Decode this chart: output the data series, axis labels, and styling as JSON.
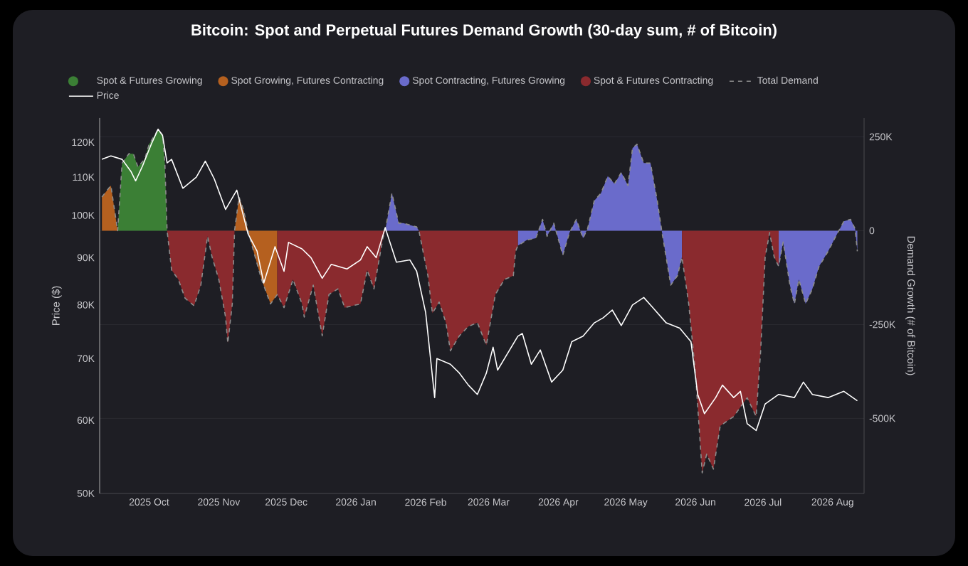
{
  "chart_data": {
    "type": "area",
    "title": "Bitcoin: Spot and Perpetual Futures Demand Growth (30-day sum, # of Bitcoin)",
    "ylabel": "Price ($)",
    "y2label": "Demand Growth (# of Bitcoin)",
    "xlim": [
      "2025-09-09",
      "2026-08-15"
    ],
    "xticks": [
      {
        "value": "2025-10-01",
        "label": "2025 Oct"
      },
      {
        "value": "2025-11-01",
        "label": "2025 Nov"
      },
      {
        "value": "2025-12-01",
        "label": "2025 Dec"
      },
      {
        "value": "2026-01-01",
        "label": "2026 Jan"
      },
      {
        "value": "2026-02-01",
        "label": "2026 Feb"
      },
      {
        "value": "2026-03-01",
        "label": "2026 Mar"
      },
      {
        "value": "2026-04-01",
        "label": "2026 Apr"
      },
      {
        "value": "2026-05-01",
        "label": "2026 May"
      },
      {
        "value": "2026-06-01",
        "label": "2026 Jun"
      },
      {
        "value": "2026-07-01",
        "label": "2026 Jul"
      },
      {
        "value": "2026-08-01",
        "label": "2026 Aug"
      }
    ],
    "ylim": [
      50000,
      127500
    ],
    "log": "y",
    "yticks": [
      {
        "value": 50000,
        "label": "50K"
      },
      {
        "value": 60000,
        "label": "60K"
      },
      {
        "value": 70000,
        "label": "70K"
      },
      {
        "value": 80000,
        "label": "80K"
      },
      {
        "value": 90000,
        "label": "90K"
      },
      {
        "value": 100000,
        "label": "100K"
      },
      {
        "value": 110000,
        "label": "110K"
      },
      {
        "value": 120000,
        "label": "120K"
      }
    ],
    "y2lim": [
      -700000,
      300000
    ],
    "y2ticks": [
      {
        "value": -500000,
        "label": "-500K"
      },
      {
        "value": -250000,
        "label": "-250K"
      },
      0,
      {
        "value": 250000,
        "label": "250K"
      }
    ],
    "grid": "y2",
    "legend": "top",
    "series": [
      {
        "name": "Spot & Futures Growing",
        "axis": "y2",
        "color": "#3b7f35",
        "x": [
          "2025-09-17",
          "2025-09-19",
          "2025-09-22",
          "2025-09-24",
          "2025-09-26",
          "2025-09-29",
          "2025-10-01",
          "2025-10-05",
          "2025-10-07",
          "2025-10-08",
          "2025-10-09"
        ],
        "values": [
          0,
          180000,
          205000,
          205000,
          170000,
          190000,
          230000,
          270000,
          255000,
          180000,
          0
        ]
      },
      {
        "name": "Spot Growing, Futures Contracting",
        "axis": "y2",
        "color": "#b5601f",
        "x": [
          "2025-09-10",
          "2025-09-14",
          "2025-09-17",
          "2025-10-15",
          "2025-11-08",
          "2025-11-10",
          "2025-11-12",
          "2025-11-14",
          "2025-11-16",
          "2025-11-20",
          "2025-11-24",
          "2025-11-27"
        ],
        "values": [
          90000,
          120000,
          0,
          null,
          0,
          90000,
          55000,
          0,
          -45000,
          -130000,
          -195000,
          -170000
        ]
      },
      {
        "name": "Spot Contracting, Futures Growing",
        "axis": "y2",
        "color": "#6a6bcb",
        "x": [
          "2026-01-14",
          "2026-01-17",
          "2026-01-20",
          "2026-01-22",
          "2026-01-28",
          "2026-01-29",
          "2026-02-15",
          "2026-03-14",
          "2026-03-18",
          "2026-03-22",
          "2026-03-25",
          "2026-03-27",
          "2026-03-30",
          "2026-04-03",
          "2026-04-06",
          "2026-04-09",
          "2026-04-12",
          "2026-04-14",
          "2026-04-17",
          "2026-04-20",
          "2026-04-23",
          "2026-04-26",
          "2026-04-29",
          "2026-05-02",
          "2026-05-04",
          "2026-05-06",
          "2026-05-09",
          "2026-05-12",
          "2026-05-15",
          "2026-05-17",
          "2026-05-21",
          "2026-05-24",
          "2026-05-26",
          "2026-06-15",
          "2026-07-08",
          "2026-07-10",
          "2026-07-13",
          "2026-07-15",
          "2026-07-17",
          "2026-07-20",
          "2026-07-23",
          "2026-07-26",
          "2026-07-30",
          "2026-08-02",
          "2026-08-06",
          "2026-08-09",
          "2026-08-11",
          "2026-08-12"
        ],
        "values": [
          0,
          100000,
          20000,
          20000,
          10000,
          0,
          null,
          -40000,
          -25000,
          -20000,
          30000,
          -15000,
          20000,
          -65000,
          -5000,
          30000,
          -20000,
          5000,
          80000,
          100000,
          145000,
          125000,
          155000,
          120000,
          220000,
          230000,
          180000,
          180000,
          80000,
          0,
          -145000,
          -120000,
          -70000,
          null,
          -95000,
          -30000,
          -145000,
          -195000,
          -130000,
          -195000,
          -155000,
          -95000,
          -55000,
          -20000,
          25000,
          30000,
          5000,
          -55000
        ]
      },
      {
        "name": "Spot & Futures Contracting",
        "axis": "y2",
        "color": "#8a2a2e",
        "x": [
          "2025-10-09",
          "2025-10-11",
          "2025-10-14",
          "2025-10-17",
          "2025-10-21",
          "2025-10-24",
          "2025-10-27",
          "2025-10-29",
          "2025-11-01",
          "2025-11-04",
          "2025-11-05",
          "2025-11-07",
          "2025-11-08",
          "2025-11-18",
          "2025-11-27",
          "2025-11-30",
          "2025-12-04",
          "2025-12-08",
          "2025-12-09",
          "2025-12-13",
          "2025-12-17",
          "2025-12-20",
          "2025-12-24",
          "2025-12-27",
          "2026-01-03",
          "2026-01-06",
          "2026-01-09",
          "2026-01-13",
          "2026-01-14",
          "2026-01-21",
          "2026-01-29",
          "2026-02-02",
          "2026-02-04",
          "2026-02-07",
          "2026-02-10",
          "2026-02-12",
          "2026-02-16",
          "2026-02-20",
          "2026-02-24",
          "2026-02-28",
          "2026-03-04",
          "2026-03-08",
          "2026-03-12",
          "2026-03-13",
          "2026-03-14",
          "2026-04-15",
          "2026-05-26",
          "2026-05-29",
          "2026-06-01",
          "2026-06-04",
          "2026-06-06",
          "2026-06-09",
          "2026-06-12",
          "2026-06-18",
          "2026-06-24",
          "2026-06-28",
          "2026-06-30",
          "2026-07-02",
          "2026-07-04",
          "2026-07-06",
          "2026-07-08"
        ],
        "values": [
          0,
          -105000,
          -130000,
          -180000,
          -200000,
          -145000,
          -15000,
          -70000,
          -130000,
          -230000,
          -300000,
          -195000,
          0,
          null,
          -170000,
          -205000,
          -130000,
          -195000,
          -230000,
          -145000,
          -280000,
          -170000,
          -155000,
          -205000,
          -195000,
          -105000,
          -155000,
          -20000,
          0,
          null,
          0,
          -120000,
          -220000,
          -190000,
          -245000,
          -320000,
          -280000,
          -255000,
          -245000,
          -305000,
          -170000,
          -130000,
          -120000,
          -55000,
          -40000,
          null,
          -70000,
          -195000,
          -380000,
          -645000,
          -595000,
          -635000,
          -520000,
          -495000,
          -445000,
          -495000,
          -320000,
          -70000,
          -5000,
          -70000,
          -95000
        ]
      },
      {
        "name": "Total Demand",
        "type": "line",
        "axis": "y2",
        "color": "#8c8c8c",
        "line_style": "dashed",
        "x": [
          "2025-09-10",
          "2025-09-14",
          "2025-09-17",
          "2025-09-19",
          "2025-09-22",
          "2025-09-24",
          "2025-09-26",
          "2025-09-29",
          "2025-10-01",
          "2025-10-05",
          "2025-10-07",
          "2025-10-08",
          "2025-10-09",
          "2025-10-11",
          "2025-10-14",
          "2025-10-17",
          "2025-10-21",
          "2025-10-24",
          "2025-10-27",
          "2025-10-29",
          "2025-11-01",
          "2025-11-04",
          "2025-11-05",
          "2025-11-07",
          "2025-11-08",
          "2025-11-10",
          "2025-11-12",
          "2025-11-14",
          "2025-11-16",
          "2025-11-20",
          "2025-11-24",
          "2025-11-27",
          "2025-11-30",
          "2025-12-04",
          "2025-12-08",
          "2025-12-09",
          "2025-12-13",
          "2025-12-17",
          "2025-12-20",
          "2025-12-24",
          "2025-12-27",
          "2026-01-03",
          "2026-01-06",
          "2026-01-09",
          "2026-01-13",
          "2026-01-14",
          "2026-01-17",
          "2026-01-20",
          "2026-01-22",
          "2026-01-28",
          "2026-01-29",
          "2026-02-02",
          "2026-02-04",
          "2026-02-07",
          "2026-02-10",
          "2026-02-12",
          "2026-02-16",
          "2026-02-20",
          "2026-02-24",
          "2026-02-28",
          "2026-03-04",
          "2026-03-08",
          "2026-03-12",
          "2026-03-13",
          "2026-03-14",
          "2026-03-18",
          "2026-03-22",
          "2026-03-25",
          "2026-03-27",
          "2026-03-30",
          "2026-04-03",
          "2026-04-06",
          "2026-04-09",
          "2026-04-12",
          "2026-04-14",
          "2026-04-17",
          "2026-04-20",
          "2026-04-23",
          "2026-04-26",
          "2026-04-29",
          "2026-05-02",
          "2026-05-04",
          "2026-05-06",
          "2026-05-09",
          "2026-05-12",
          "2026-05-15",
          "2026-05-17",
          "2026-05-21",
          "2026-05-24",
          "2026-05-26",
          "2026-05-29",
          "2026-06-01",
          "2026-06-04",
          "2026-06-06",
          "2026-06-09",
          "2026-06-12",
          "2026-06-18",
          "2026-06-24",
          "2026-06-28",
          "2026-06-30",
          "2026-07-02",
          "2026-07-04",
          "2026-07-06",
          "2026-07-08",
          "2026-07-10",
          "2026-07-13",
          "2026-07-15",
          "2026-07-17",
          "2026-07-20",
          "2026-07-23",
          "2026-07-26",
          "2026-07-30",
          "2026-08-02",
          "2026-08-06",
          "2026-08-09",
          "2026-08-11",
          "2026-08-12"
        ],
        "values": [
          90000,
          120000,
          0,
          180000,
          205000,
          205000,
          170000,
          190000,
          230000,
          270000,
          255000,
          180000,
          0,
          -105000,
          -130000,
          -180000,
          -200000,
          -145000,
          -15000,
          -70000,
          -130000,
          -230000,
          -300000,
          -195000,
          0,
          90000,
          55000,
          0,
          -45000,
          -130000,
          -195000,
          -170000,
          -205000,
          -130000,
          -195000,
          -230000,
          -145000,
          -280000,
          -170000,
          -155000,
          -205000,
          -195000,
          -105000,
          -155000,
          -20000,
          0,
          100000,
          20000,
          20000,
          10000,
          0,
          -120000,
          -220000,
          -190000,
          -245000,
          -320000,
          -280000,
          -255000,
          -245000,
          -305000,
          -170000,
          -130000,
          -120000,
          -55000,
          -40000,
          -25000,
          -20000,
          30000,
          -15000,
          20000,
          -65000,
          -5000,
          30000,
          -20000,
          5000,
          80000,
          100000,
          145000,
          125000,
          155000,
          120000,
          220000,
          230000,
          180000,
          180000,
          80000,
          0,
          -145000,
          -120000,
          -70000,
          -195000,
          -380000,
          -645000,
          -595000,
          -635000,
          -520000,
          -495000,
          -445000,
          -495000,
          -320000,
          -70000,
          -5000,
          -70000,
          -95000,
          -30000,
          -145000,
          -195000,
          -130000,
          -195000,
          -155000,
          -95000,
          -55000,
          -20000,
          25000,
          30000,
          5000,
          -55000
        ]
      },
      {
        "name": "Price",
        "type": "line",
        "color": "#ffffff",
        "x": [
          "2025-09-10",
          "2025-09-14",
          "2025-09-19",
          "2025-09-23",
          "2025-09-25",
          "2025-09-28",
          "2025-10-02",
          "2025-10-05",
          "2025-10-07",
          "2025-10-09",
          "2025-10-11",
          "2025-10-16",
          "2025-10-22",
          "2025-10-26",
          "2025-10-30",
          "2025-11-04",
          "2025-11-09",
          "2025-11-14",
          "2025-11-18",
          "2025-11-21",
          "2025-11-26",
          "2025-11-30",
          "2025-12-02",
          "2025-12-08",
          "2025-12-12",
          "2025-12-17",
          "2025-12-21",
          "2025-12-28",
          "2026-01-03",
          "2026-01-06",
          "2026-01-10",
          "2026-01-14",
          "2026-01-19",
          "2026-01-25",
          "2026-01-28",
          "2026-02-01",
          "2026-02-05",
          "2026-02-06",
          "2026-02-12",
          "2026-02-16",
          "2026-02-20",
          "2026-02-24",
          "2026-02-28",
          "2026-03-03",
          "2026-03-05",
          "2026-03-14",
          "2026-03-16",
          "2026-03-20",
          "2026-03-24",
          "2026-03-29",
          "2026-04-03",
          "2026-04-07",
          "2026-04-12",
          "2026-04-17",
          "2026-04-21",
          "2026-04-25",
          "2026-04-29",
          "2026-05-04",
          "2026-05-09",
          "2026-05-13",
          "2026-05-19",
          "2026-05-25",
          "2026-05-30",
          "2026-06-02",
          "2026-06-05",
          "2026-06-10",
          "2026-06-13",
          "2026-06-18",
          "2026-06-21",
          "2026-06-24",
          "2026-06-28",
          "2026-07-02",
          "2026-07-08",
          "2026-07-15",
          "2026-07-19",
          "2026-07-23",
          "2026-07-30",
          "2026-08-06",
          "2026-08-12"
        ],
        "values": [
          115000,
          116000,
          115000,
          111500,
          109000,
          113000,
          119500,
          124000,
          122000,
          114000,
          115000,
          107000,
          110000,
          114500,
          109500,
          101500,
          106500,
          95500,
          91500,
          84500,
          92500,
          87000,
          93500,
          92000,
          90000,
          85500,
          88500,
          87500,
          89500,
          92500,
          90000,
          97000,
          89000,
          89500,
          87000,
          78500,
          63500,
          70000,
          69000,
          67500,
          65500,
          64000,
          67500,
          72000,
          68000,
          74000,
          74500,
          69000,
          71500,
          66000,
          68000,
          73000,
          74000,
          76500,
          77500,
          79000,
          76000,
          80000,
          81500,
          79500,
          76500,
          75500,
          73000,
          64000,
          61000,
          63500,
          65500,
          63500,
          64500,
          59500,
          58500,
          62500,
          64000,
          63500,
          66000,
          64000,
          63500,
          64500,
          63000
        ]
      }
    ]
  }
}
